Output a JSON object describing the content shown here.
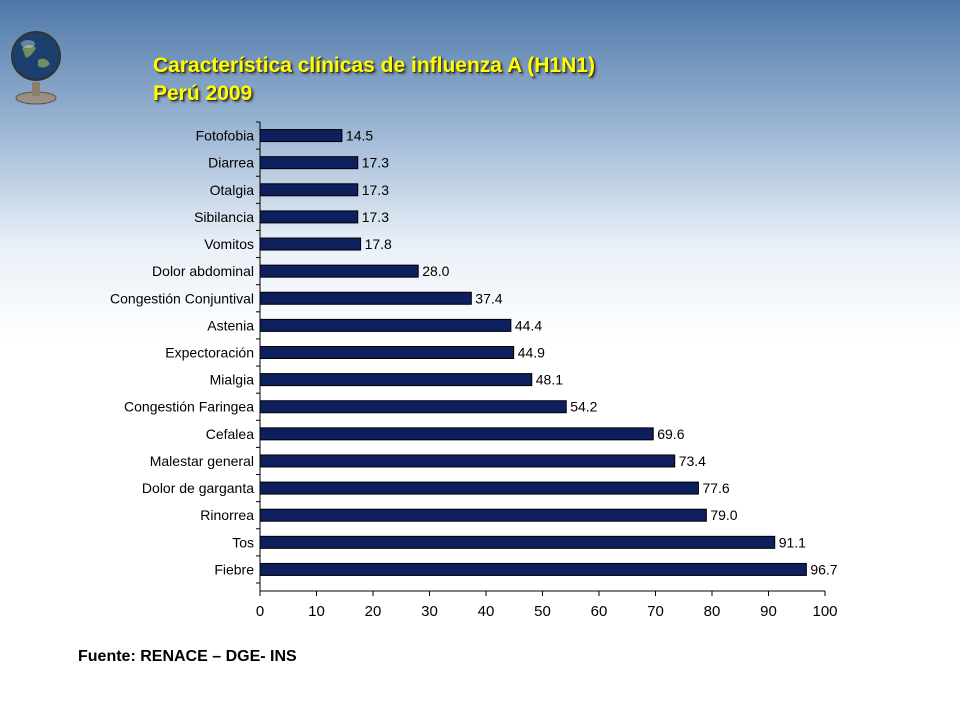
{
  "title": {
    "line1": "Característica clínicas de influenza A (H1N1)",
    "line2": "Perú 2009"
  },
  "source": "Fuente: RENACE – DGE- INS",
  "colors": {
    "bar": "#0d1f5c",
    "title": "#ffff00"
  },
  "chart_data": {
    "type": "bar",
    "orientation": "horizontal",
    "categories": [
      "Fotofobia",
      "Diarrea",
      "Otalgia",
      "Sibilancia",
      "Vomitos",
      "Dolor abdominal",
      "Congestión Conjuntival",
      "Astenia",
      "Expectoración",
      "Mialgia",
      "Congestión Faringea",
      "Cefalea",
      "Malestar general",
      "Dolor de garganta",
      "Rinorrea",
      "Tos",
      "Fiebre"
    ],
    "values": [
      14.5,
      17.3,
      17.3,
      17.3,
      17.8,
      28.0,
      37.4,
      44.4,
      44.9,
      48.1,
      54.2,
      69.6,
      73.4,
      77.6,
      79.0,
      91.1,
      96.7
    ],
    "labels": [
      "14.5",
      "17.3",
      "17.3",
      "17.3",
      "17.8",
      "28.0",
      "37.4",
      "44.4",
      "44.9",
      "48.1",
      "54.2",
      "69.6",
      "73.4",
      "77.6",
      "79.0",
      "91.1",
      "96.7"
    ],
    "xticks": [
      "0",
      "10",
      "20",
      "30",
      "40",
      "50",
      "60",
      "70",
      "80",
      "90",
      "100"
    ],
    "xlim": [
      0,
      100
    ],
    "grid": false,
    "legend": "none"
  }
}
